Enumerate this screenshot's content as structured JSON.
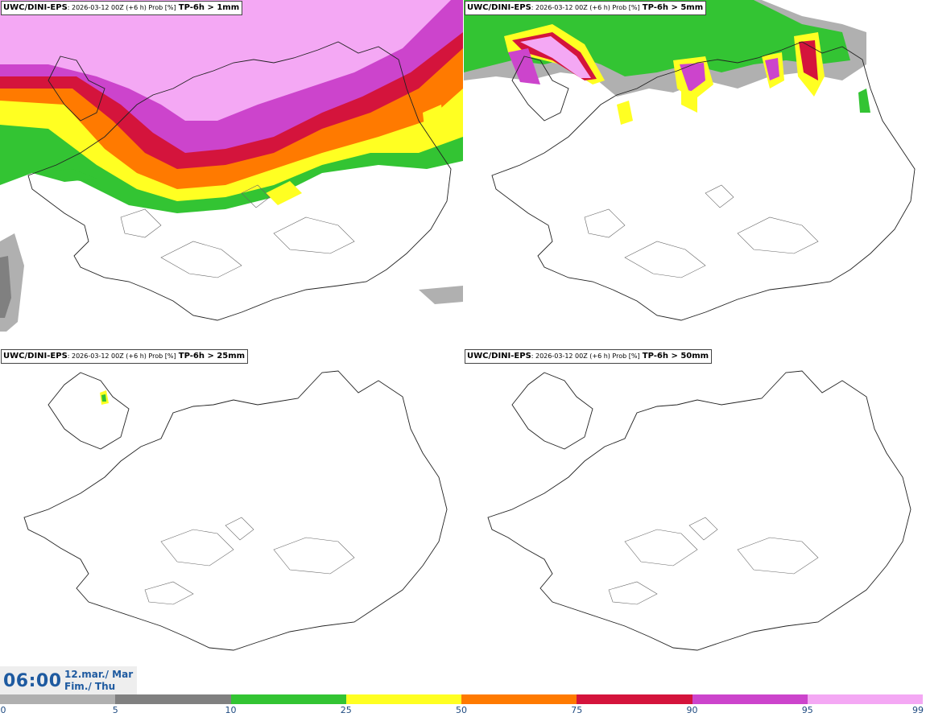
{
  "panels": [
    {
      "source": "UWC/DINI-EPS",
      "meta": ": 2026-03-12 00Z (+6 h) Prob [%]",
      "variable": "TP-6h > 1mm"
    },
    {
      "source": "UWC/DINI-EPS",
      "meta": ": 2026-03-12 00Z (+6 h) Prob [%]",
      "variable": "TP-6h > 5mm"
    },
    {
      "source": "UWC/DINI-EPS",
      "meta": ": 2026-03-12 00Z (+6 h) Prob [%]",
      "variable": "TP-6h > 25mm"
    },
    {
      "source": "UWC/DINI-EPS",
      "meta": ": 2026-03-12 00Z (+6 h) Prob [%]",
      "variable": "TP-6h > 50mm"
    }
  ],
  "valid_time": {
    "time": "06:00",
    "date_line1": "12.mar./ Mar",
    "date_line2": "Fim./ Thu"
  },
  "colorbar": {
    "ticks": [
      "0",
      "5",
      "10",
      "25",
      "50",
      "75",
      "90",
      "95",
      "99"
    ],
    "colors": [
      "#ffffff",
      "#b0b0b0",
      "#808080",
      "#33c433",
      "#ffff22",
      "#ff7a00",
      "#d4143c",
      "#cc44cc",
      "#f4a8f4"
    ]
  }
}
